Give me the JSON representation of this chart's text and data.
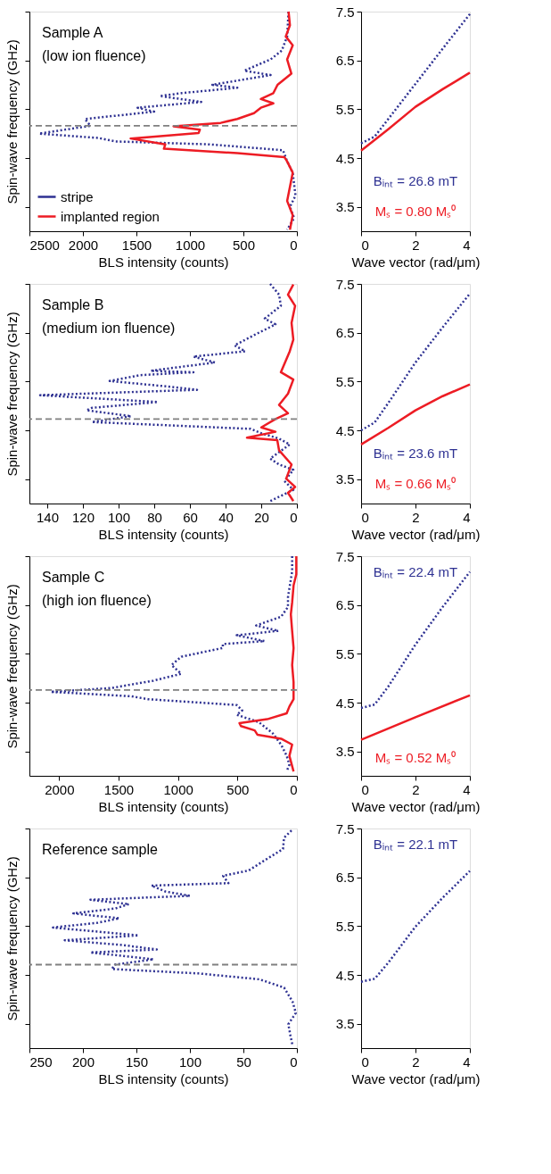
{
  "chart_data": [
    {
      "type": "line",
      "xlabel": "BLS intensity (counts)",
      "ylabel": "Spin-wave frequency (GHz)",
      "xlim": [
        2500,
        0
      ],
      "ylim": [
        3,
        7.5
      ],
      "xticks": [
        2500,
        2000,
        1500,
        1000,
        500,
        0
      ],
      "yticks": [
        3.5,
        4.5,
        5.5,
        6.5,
        7.5
      ],
      "tick_labels": "x",
      "legend": "bottom left",
      "annotations": [
        "Sample A",
        "(low ion fluence)"
      ],
      "ref_lines": [
        {
          "axis": "y",
          "value": 5.16,
          "color": "#808080",
          "line_style": "dashed"
        }
      ],
      "series": [
        {
          "name": "stripe",
          "color": "#2e3192",
          "line_style": "dotted",
          "x": [
            78,
            91,
            142,
            246,
            492,
            246,
            790,
            557,
            1075,
            1282,
            894,
            1489,
            1334,
            1981,
            1930,
            2409,
            1852,
            1696,
            816,
            130,
            91,
            39,
            13,
            65,
            26,
            91
          ],
          "values": [
            7.5,
            6.99,
            6.7,
            6.52,
            6.29,
            6.2,
            6.0,
            5.94,
            5.83,
            5.77,
            5.65,
            5.53,
            5.45,
            5.3,
            5.16,
            5.0,
            4.91,
            4.84,
            4.78,
            4.66,
            4.43,
            4.2,
            3.73,
            3.5,
            3.27,
            3.03
          ]
        },
        {
          "name": "implanted region",
          "color": "#ed1c24",
          "line_style": "solid",
          "x": [
            78,
            65,
            104,
            39,
            91,
            52,
            181,
            220,
            337,
            220,
            337,
            401,
            557,
            712,
            1153,
            907,
            919,
            1554,
            1230,
            1243,
            557,
            117,
            91,
            39,
            65,
            91,
            39,
            65
          ],
          "values": [
            7.5,
            7.22,
            6.99,
            6.81,
            6.52,
            6.23,
            6.0,
            5.83,
            5.71,
            5.62,
            5.53,
            5.42,
            5.3,
            5.22,
            5.15,
            5.08,
            5.01,
            4.9,
            4.78,
            4.69,
            4.6,
            4.52,
            4.43,
            4.2,
            3.91,
            3.62,
            3.33,
            3.03
          ]
        }
      ]
    },
    {
      "type": "line",
      "xlabel": "Wave vector (rad/μm)",
      "xlim": [
        0,
        4
      ],
      "ylim": [
        3,
        7.5
      ],
      "xticks": [
        0,
        2,
        4
      ],
      "yticks": [
        3.5,
        4.5,
        5.5,
        6.5,
        7.5
      ],
      "annotations": [
        "Bᵢₙₜ = 26.8 mT",
        "Mₛ = 0.80 Mₛ⁰"
      ],
      "series": [
        {
          "color": "#2e3192",
          "line_style": "dotted",
          "x": [
            0,
            0.5,
            1,
            2,
            3,
            4
          ],
          "values": [
            4.8,
            4.94,
            5.3,
            6.02,
            6.74,
            7.45
          ]
        },
        {
          "color": "#ed1c24",
          "line_style": "solid",
          "x": [
            0,
            1,
            2,
            3,
            4
          ],
          "values": [
            4.65,
            5.09,
            5.55,
            5.91,
            6.25
          ]
        }
      ]
    },
    {
      "type": "line",
      "xlabel": "BLS intensity (counts)",
      "ylabel": "Spin-wave frequency (GHz)",
      "xlim": [
        150,
        0
      ],
      "ylim": [
        3,
        7.5
      ],
      "xticks": [
        140,
        120,
        100,
        80,
        60,
        40,
        20,
        0
      ],
      "yticks": [
        3.5,
        4.5,
        5.5,
        6.5,
        7.5
      ],
      "tick_labels": "x",
      "annotations": [
        "Sample B",
        "(medium ion fluence)"
      ],
      "ref_lines": [
        {
          "axis": "y",
          "value": 4.73,
          "color": "#808080",
          "line_style": "dashed"
        }
      ],
      "series": [
        {
          "color": "#2e3192",
          "line_style": "dotted",
          "x": [
            15,
            10,
            9,
            18,
            12,
            23,
            35,
            29,
            58,
            46,
            82,
            58,
            88,
            105,
            73,
            56,
            144,
            78,
            115,
            118,
            93,
            115,
            26,
            20,
            10,
            4,
            15,
            10,
            2,
            7,
            2,
            15
          ],
          "values": [
            7.5,
            7.28,
            7.05,
            6.79,
            6.67,
            6.47,
            6.24,
            6.12,
            6.01,
            5.89,
            5.72,
            5.69,
            5.63,
            5.51,
            5.4,
            5.33,
            5.22,
            5.08,
            4.96,
            4.91,
            4.79,
            4.67,
            4.53,
            4.44,
            4.33,
            4.21,
            3.92,
            3.8,
            3.69,
            3.46,
            3.28,
            3.05
          ]
        },
        {
          "color": "#ed1c24",
          "line_style": "solid",
          "x": [
            2,
            5,
            1,
            3,
            2,
            4,
            9,
            2,
            5,
            10,
            5,
            12,
            20,
            12,
            28,
            11,
            10,
            3,
            6,
            1,
            5,
            2
          ],
          "values": [
            7.49,
            7.28,
            7.05,
            6.7,
            6.36,
            6.12,
            5.69,
            5.54,
            5.25,
            5.02,
            4.85,
            4.73,
            4.56,
            4.47,
            4.35,
            4.3,
            4.09,
            3.8,
            3.51,
            3.34,
            3.22,
            3.05
          ]
        }
      ]
    },
    {
      "type": "line",
      "xlabel": "Wave vector (rad/μm)",
      "xlim": [
        0,
        4
      ],
      "ylim": [
        3,
        7.5
      ],
      "xticks": [
        0,
        2,
        4
      ],
      "yticks": [
        3.5,
        4.5,
        5.5,
        6.5,
        7.5
      ],
      "annotations": [
        "Bᵢₙₜ = 23.6 mT",
        "Mₛ = 0.66 Mₛ⁰"
      ],
      "series": [
        {
          "color": "#2e3192",
          "line_style": "dotted",
          "x": [
            0,
            0.5,
            1,
            2,
            3,
            4
          ],
          "values": [
            4.5,
            4.66,
            5.06,
            5.89,
            6.61,
            7.3
          ]
        },
        {
          "color": "#ed1c24",
          "line_style": "solid",
          "x": [
            0,
            1,
            2,
            3,
            4
          ],
          "values": [
            4.21,
            4.55,
            4.91,
            5.2,
            5.44
          ]
        }
      ]
    },
    {
      "type": "line",
      "xlabel": "BLS intensity (counts)",
      "ylabel": "Spin-wave frequency (GHz)",
      "xlim": [
        2250,
        0
      ],
      "ylim": [
        3,
        7.5
      ],
      "xticks": [
        2000,
        1500,
        1000,
        500,
        0
      ],
      "yticks": [
        3.5,
        4.5,
        5.5,
        6.5,
        7.5
      ],
      "tick_labels": "x",
      "annotations": [
        "Sample C",
        "(high ion fluence)"
      ],
      "ref_lines": [
        {
          "axis": "y",
          "value": 4.76,
          "color": "#808080",
          "line_style": "dashed"
        }
      ],
      "series": [
        {
          "color": "#2e3192",
          "line_style": "dotted",
          "x": [
            40,
            40,
            75,
            75,
            133,
            343,
            156,
            506,
            273,
            623,
            623,
            973,
            1055,
            973,
            1207,
            1557,
            2070,
            1393,
            1253,
            506,
            460,
            506,
            320,
            203,
            133,
            86,
            63,
            86
          ],
          "values": [
            7.5,
            7.19,
            6.66,
            6.46,
            6.26,
            6.08,
            5.97,
            5.88,
            5.76,
            5.7,
            5.62,
            5.44,
            5.27,
            5.09,
            4.95,
            4.8,
            4.72,
            4.63,
            4.57,
            4.45,
            4.34,
            4.25,
            4.1,
            3.87,
            3.64,
            3.41,
            3.23,
            3.09
          ]
        },
        {
          "color": "#ed1c24",
          "line_style": "solid",
          "x": [
            5,
            5,
            28,
            40,
            51,
            40,
            28,
            40,
            28,
            28,
            63,
            86,
            250,
            483,
            471,
            355,
            331,
            133,
            40,
            63,
            28
          ],
          "values": [
            7.5,
            7.13,
            6.9,
            6.55,
            6.31,
            5.97,
            5.62,
            5.27,
            4.92,
            4.57,
            4.42,
            4.28,
            4.16,
            4.08,
            4.02,
            3.93,
            3.84,
            3.76,
            3.64,
            3.41,
            3.09
          ]
        }
      ]
    },
    {
      "type": "line",
      "xlabel": "Wave vector (rad/μm)",
      "xlim": [
        0,
        4
      ],
      "ylim": [
        3,
        7.5
      ],
      "xticks": [
        0,
        2,
        4
      ],
      "yticks": [
        3.5,
        4.5,
        5.5,
        6.5,
        7.5
      ],
      "annotations": [
        "Bᵢₙₜ = 22.4 mT",
        "Mₛ = 0.52 Mₛ⁰"
      ],
      "series": [
        {
          "color": "#2e3192",
          "line_style": "dotted",
          "x": [
            0,
            0.5,
            1,
            2,
            3,
            4
          ],
          "values": [
            4.39,
            4.46,
            4.83,
            5.69,
            6.46,
            7.18
          ]
        },
        {
          "color": "#ed1c24",
          "line_style": "solid",
          "x": [
            0,
            2,
            4
          ],
          "values": [
            3.74,
            4.2,
            4.65
          ]
        }
      ]
    },
    {
      "type": "line",
      "xlabel": "BLS intensity (counts)",
      "ylabel": "Spin-wave frequency (GHz)",
      "xlim": [
        250,
        0
      ],
      "ylim": [
        3,
        7.5
      ],
      "xticks": [
        250,
        200,
        150,
        100,
        50,
        0
      ],
      "yticks": [
        3.5,
        4.5,
        5.5,
        6.5,
        7.5
      ],
      "tick_labels": "x",
      "annotations": [
        "Reference sample"
      ],
      "ref_lines": [
        {
          "axis": "y",
          "value": 4.71,
          "color": "#808080",
          "line_style": "dashed"
        }
      ],
      "series": [
        {
          "color": "#2e3192",
          "line_style": "dotted",
          "x": [
            5,
            12,
            13,
            30,
            45,
            69,
            64,
            136,
            123,
            100,
            193,
            157,
            170,
            209,
            166,
            186,
            228,
            148,
            217,
            162,
            131,
            193,
            134,
            170,
            173,
            92,
            35,
            12,
            4,
            1,
            8,
            6,
            4
          ],
          "values": [
            7.46,
            7.31,
            7.08,
            6.85,
            6.64,
            6.53,
            6.38,
            6.33,
            6.21,
            6.12,
            6.04,
            5.95,
            5.86,
            5.76,
            5.66,
            5.57,
            5.47,
            5.31,
            5.21,
            5.11,
            5.02,
            4.96,
            4.82,
            4.71,
            4.62,
            4.53,
            4.41,
            4.24,
            3.95,
            3.72,
            3.49,
            3.25,
            3.05
          ]
        }
      ]
    },
    {
      "type": "line",
      "xlabel": "Wave vector (rad/μm)",
      "xlim": [
        0,
        4
      ],
      "ylim": [
        3,
        7.5
      ],
      "xticks": [
        0,
        2,
        4
      ],
      "yticks": [
        3.5,
        4.5,
        5.5,
        6.5,
        7.5
      ],
      "annotations": [
        "Bᵢₙₜ = 22.1 mT"
      ],
      "series": [
        {
          "color": "#2e3192",
          "line_style": "dotted",
          "x": [
            0,
            0.5,
            1,
            2,
            3,
            4
          ],
          "values": [
            4.36,
            4.42,
            4.75,
            5.49,
            6.08,
            6.63
          ]
        }
      ]
    }
  ]
}
